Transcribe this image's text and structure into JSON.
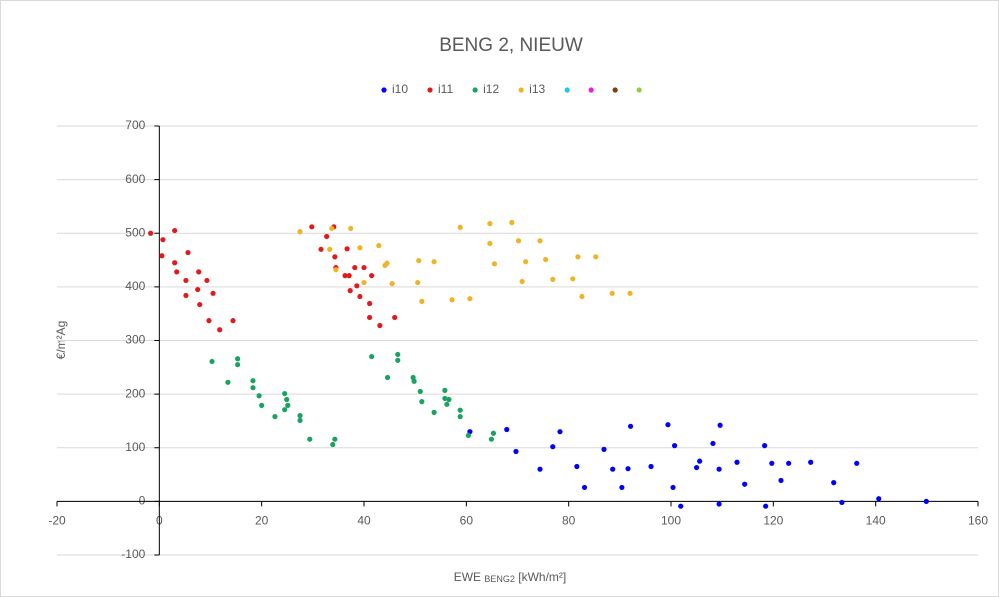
{
  "chart_data": {
    "type": "scatter",
    "title": "BENG 2, NIEUW",
    "x_label": [
      "EWE",
      "BENG2",
      "[kWh/m²]"
    ],
    "y_label": "€/m²Ag",
    "xlim": [
      -20,
      160
    ],
    "xticks": [
      -20,
      0,
      20,
      40,
      60,
      80,
      100,
      120,
      140,
      160
    ],
    "ylim": [
      -100,
      700
    ],
    "yticks": [
      -100,
      0,
      100,
      200,
      300,
      400,
      500,
      600,
      700
    ],
    "grid": true,
    "legend": "top",
    "series": [
      {
        "name": "i10",
        "color": "#0000ff",
        "x": [
          60.7,
          67.9,
          69.7,
          74.4,
          76.9,
          78.3,
          81.6,
          83.1,
          86.9,
          88.6,
          90.4,
          91.6,
          92.1,
          96.1,
          99.4,
          100.7,
          100.4,
          101.9,
          105.0,
          105.6,
          108.2,
          109.4,
          109.6,
          109.4,
          112.9,
          114.4,
          118.3,
          118.5,
          119.7,
          121.5,
          123.0,
          127.3,
          131.8,
          133.4,
          136.3,
          140.6,
          149.9
        ],
        "values": [
          130,
          134,
          93,
          60,
          102,
          130,
          65,
          26,
          97,
          60,
          26,
          61,
          140,
          65,
          143,
          104,
          26,
          -9,
          63,
          75,
          108,
          60,
          142,
          -5,
          73,
          32,
          104,
          -9,
          71,
          39,
          71,
          73,
          35,
          -2,
          71,
          5,
          0
        ]
      },
      {
        "name": "i11",
        "color": "#e31a1c",
        "x": [
          -1.7,
          0.7,
          0.5,
          3.0,
          3.0,
          3.4,
          5.6,
          5.2,
          5.2,
          7.7,
          7.5,
          7.9,
          9.3,
          9.7,
          10.5,
          11.8,
          14.4,
          29.8,
          31.6,
          32.7,
          34.1,
          34.3,
          34.5,
          36.3,
          36.7,
          37.1,
          37.3,
          38.2,
          38.6,
          39.2,
          40.0,
          41.1,
          41.5,
          41.1,
          43.1,
          46.0
        ],
        "values": [
          500,
          488,
          458,
          505,
          445,
          428,
          464,
          412,
          384,
          428,
          395,
          367,
          412,
          337,
          388,
          320,
          337,
          512,
          470,
          494,
          512,
          456,
          436,
          421,
          471,
          421,
          393,
          436,
          402,
          382,
          436,
          369,
          421,
          343,
          328,
          343
        ]
      },
      {
        "name": "i12",
        "color": "#1aa260",
        "x": [
          10.3,
          13.4,
          15.3,
          15.3,
          18.3,
          18.3,
          19.5,
          20.0,
          22.6,
          24.5,
          24.5,
          24.9,
          25.1,
          27.5,
          27.5,
          29.4,
          33.9,
          34.3,
          41.5,
          44.6,
          46.6,
          46.6,
          49.6,
          49.8,
          51.0,
          51.3,
          53.7,
          55.8,
          55.8,
          56.2,
          56.6,
          58.8,
          58.8,
          60.4,
          64.9,
          65.3
        ],
        "values": [
          261,
          222,
          266,
          255,
          225,
          212,
          197,
          179,
          158,
          201,
          171,
          190,
          179,
          160,
          151,
          116,
          106,
          116,
          270,
          231,
          274,
          263,
          231,
          224,
          205,
          186,
          166,
          207,
          192,
          181,
          190,
          170,
          158,
          123,
          116,
          127
        ]
      },
      {
        "name": "i13",
        "color": "#f0b323",
        "x": [
          27.5,
          33.3,
          33.7,
          34.5,
          37.4,
          39.2,
          40.0,
          42.9,
          44.1,
          44.5,
          45.5,
          50.5,
          50.7,
          51.3,
          53.7,
          57.2,
          58.8,
          60.7,
          64.6,
          64.6,
          65.5,
          68.9,
          70.2,
          70.9,
          71.6,
          74.4,
          75.5,
          76.9,
          80.8,
          81.8,
          82.6,
          85.3,
          92.0,
          88.5
        ],
        "values": [
          503,
          470,
          509,
          432,
          509,
          473,
          408,
          477,
          440,
          444,
          406,
          408,
          449,
          373,
          447,
          376,
          511,
          378,
          518,
          481,
          443,
          520,
          486,
          410,
          447,
          486,
          451,
          414,
          415,
          456,
          382,
          456,
          388,
          388
        ]
      },
      {
        "name": null,
        "color": "#1fc6f0",
        "x": [],
        "values": []
      },
      {
        "name": null,
        "color": "#e81ee8",
        "x": [],
        "values": []
      },
      {
        "name": null,
        "color": "#8b3a0e",
        "x": [],
        "values": []
      },
      {
        "name": null,
        "color": "#8fce4a",
        "x": [],
        "values": []
      }
    ]
  }
}
